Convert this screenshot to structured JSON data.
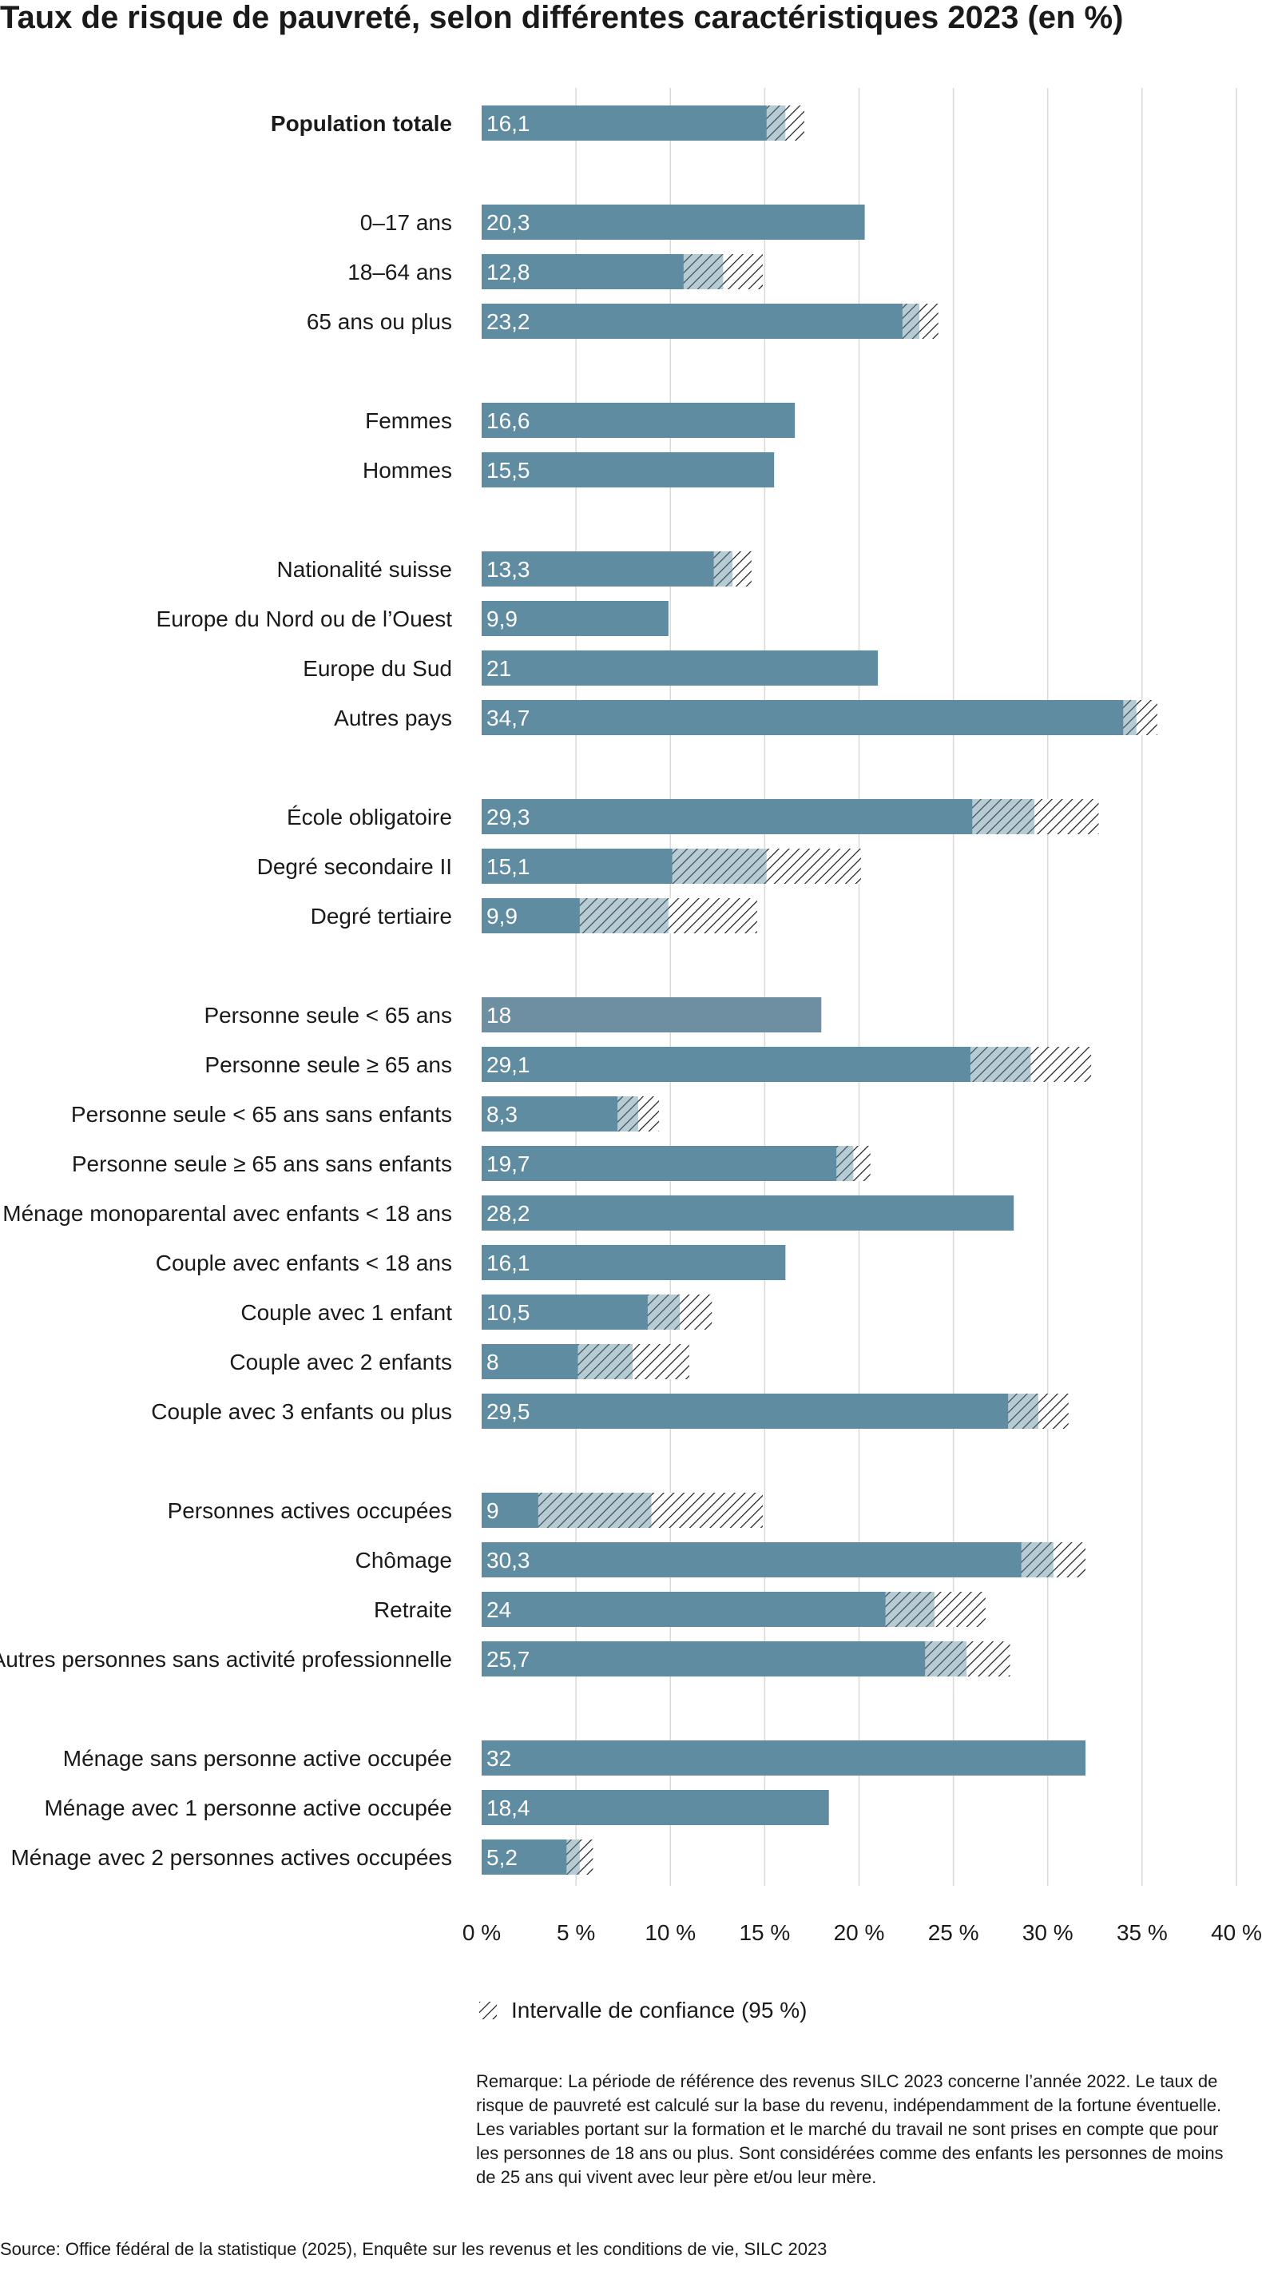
{
  "chart_data": {
    "type": "bar",
    "orientation": "horizontal",
    "title": "Taux de risque de pauvreté, selon différentes caractéristiques 2023 (en %)",
    "xlim": [
      0,
      40
    ],
    "xticks": [
      0,
      5,
      10,
      15,
      20,
      25,
      30,
      35,
      40
    ],
    "xtick_labels": [
      "0 %",
      "5 %",
      "10 %",
      "15 %",
      "20 %",
      "25 %",
      "30 %",
      "35 %",
      "40 %"
    ],
    "grid": true,
    "bar_color": "#5f8ca1",
    "bar_color_alt": "#6e8ea2",
    "groups": [
      {
        "items": [
          {
            "label": "Population totale",
            "value": 16.1,
            "value_label": "16,1",
            "ci": [
              15.1,
              17.1
            ],
            "bold": true
          }
        ]
      },
      {
        "items": [
          {
            "label": "0–17 ans",
            "value": 20.3,
            "value_label": "20,3",
            "ci": null
          },
          {
            "label": "18–64 ans",
            "value": 12.8,
            "value_label": "12,8",
            "ci": [
              10.7,
              14.9
            ]
          },
          {
            "label": "65 ans ou plus",
            "value": 23.2,
            "value_label": "23,2",
            "ci": [
              22.3,
              24.2
            ]
          }
        ]
      },
      {
        "items": [
          {
            "label": "Femmes",
            "value": 16.6,
            "value_label": "16,6",
            "ci": null
          },
          {
            "label": "Hommes",
            "value": 15.5,
            "value_label": "15,5",
            "ci": null
          }
        ]
      },
      {
        "items": [
          {
            "label": "Nationalité suisse",
            "value": 13.3,
            "value_label": "13,3",
            "ci": [
              12.3,
              14.3
            ]
          },
          {
            "label": "Europe du Nord ou de l’Ouest",
            "value": 9.9,
            "value_label": "9,9",
            "ci": null
          },
          {
            "label": "Europe du Sud",
            "value": 21,
            "value_label": "21",
            "ci": null
          },
          {
            "label": "Autres pays",
            "value": 34.7,
            "value_label": "34,7",
            "ci": [
              34.0,
              35.8
            ]
          }
        ]
      },
      {
        "items": [
          {
            "label": "École obligatoire",
            "value": 29.3,
            "value_label": "29,3",
            "ci": [
              26.0,
              32.7
            ]
          },
          {
            "label": "Degré secondaire II",
            "value": 15.1,
            "value_label": "15,1",
            "ci": [
              10.1,
              20.1
            ]
          },
          {
            "label": "Degré tertiaire",
            "value": 9.9,
            "value_label": "9,9",
            "ci": [
              5.2,
              14.6
            ]
          }
        ]
      },
      {
        "items": [
          {
            "label": "Personne seule < 65 ans",
            "value": 18,
            "value_label": "18",
            "ci": null,
            "alt_color": true
          },
          {
            "label": "Personne seule ≥ 65 ans",
            "value": 29.1,
            "value_label": "29,1",
            "ci": [
              25.9,
              32.3
            ]
          },
          {
            "label": "Personne seule < 65 ans sans enfants",
            "value": 8.3,
            "value_label": "8,3",
            "ci": [
              7.2,
              9.4
            ]
          },
          {
            "label": "Personne seule ≥ 65 ans sans enfants",
            "value": 19.7,
            "value_label": "19,7",
            "ci": [
              18.8,
              20.6
            ]
          },
          {
            "label": "Ménage monoparental avec enfants < 18 ans",
            "value": 28.2,
            "value_label": "28,2",
            "ci": null
          },
          {
            "label": "Couple avec enfants < 18 ans",
            "value": 16.1,
            "value_label": "16,1",
            "ci": null
          },
          {
            "label": "Couple avec 1 enfant",
            "value": 10.5,
            "value_label": "10,5",
            "ci": [
              8.8,
              12.2
            ]
          },
          {
            "label": "Couple avec 2 enfants",
            "value": 8,
            "value_label": "8",
            "ci": [
              5.1,
              11.0
            ]
          },
          {
            "label": "Couple avec 3 enfants ou plus",
            "value": 29.5,
            "value_label": "29,5",
            "ci": [
              27.9,
              31.1
            ]
          }
        ]
      },
      {
        "items": [
          {
            "label": "Personnes actives occupées",
            "value": 9,
            "value_label": "9",
            "ci": [
              3.0,
              14.9
            ]
          },
          {
            "label": "Chômage",
            "value": 30.3,
            "value_label": "30,3",
            "ci": [
              28.6,
              32.0
            ]
          },
          {
            "label": "Retraite",
            "value": 24,
            "value_label": "24",
            "ci": [
              21.4,
              26.7
            ]
          },
          {
            "label": "Autres personnes sans activité professionnelle",
            "value": 25.7,
            "value_label": "25,7",
            "ci": [
              23.5,
              28.0
            ]
          }
        ]
      },
      {
        "items": [
          {
            "label": "Ménage sans personne active occupée",
            "value": 32,
            "value_label": "32",
            "ci": null
          },
          {
            "label": "Ménage avec 1 personne active occupée",
            "value": 18.4,
            "value_label": "18,4",
            "ci": null
          },
          {
            "label": "Ménage avec 2 personnes actives occupées",
            "value": 5.2,
            "value_label": "5,2",
            "ci": [
              4.5,
              5.9
            ]
          }
        ]
      }
    ],
    "legend": {
      "label": "Intervalle de confiance (95 %)",
      "position": "bottom"
    }
  },
  "note": {
    "heading": "Remarque:",
    "text": "La période de référence des revenus SILC 2023 concerne l’année 2022. Le taux de risque de pauvreté est calculé sur la base du revenu, indépendamment de la fortune éventuelle. Les variables portant sur la formation et le marché du travail ne sont prises en compte que pour les personnes de 18 ans ou plus. Sont considérées comme des enfants les personnes de moins de 25 ans qui vivent avec leur père et/ou leur mère."
  },
  "source": "Source: Office fédéral de la statistique (2025), Enquête sur les revenus et les conditions de vie, SILC 2023"
}
